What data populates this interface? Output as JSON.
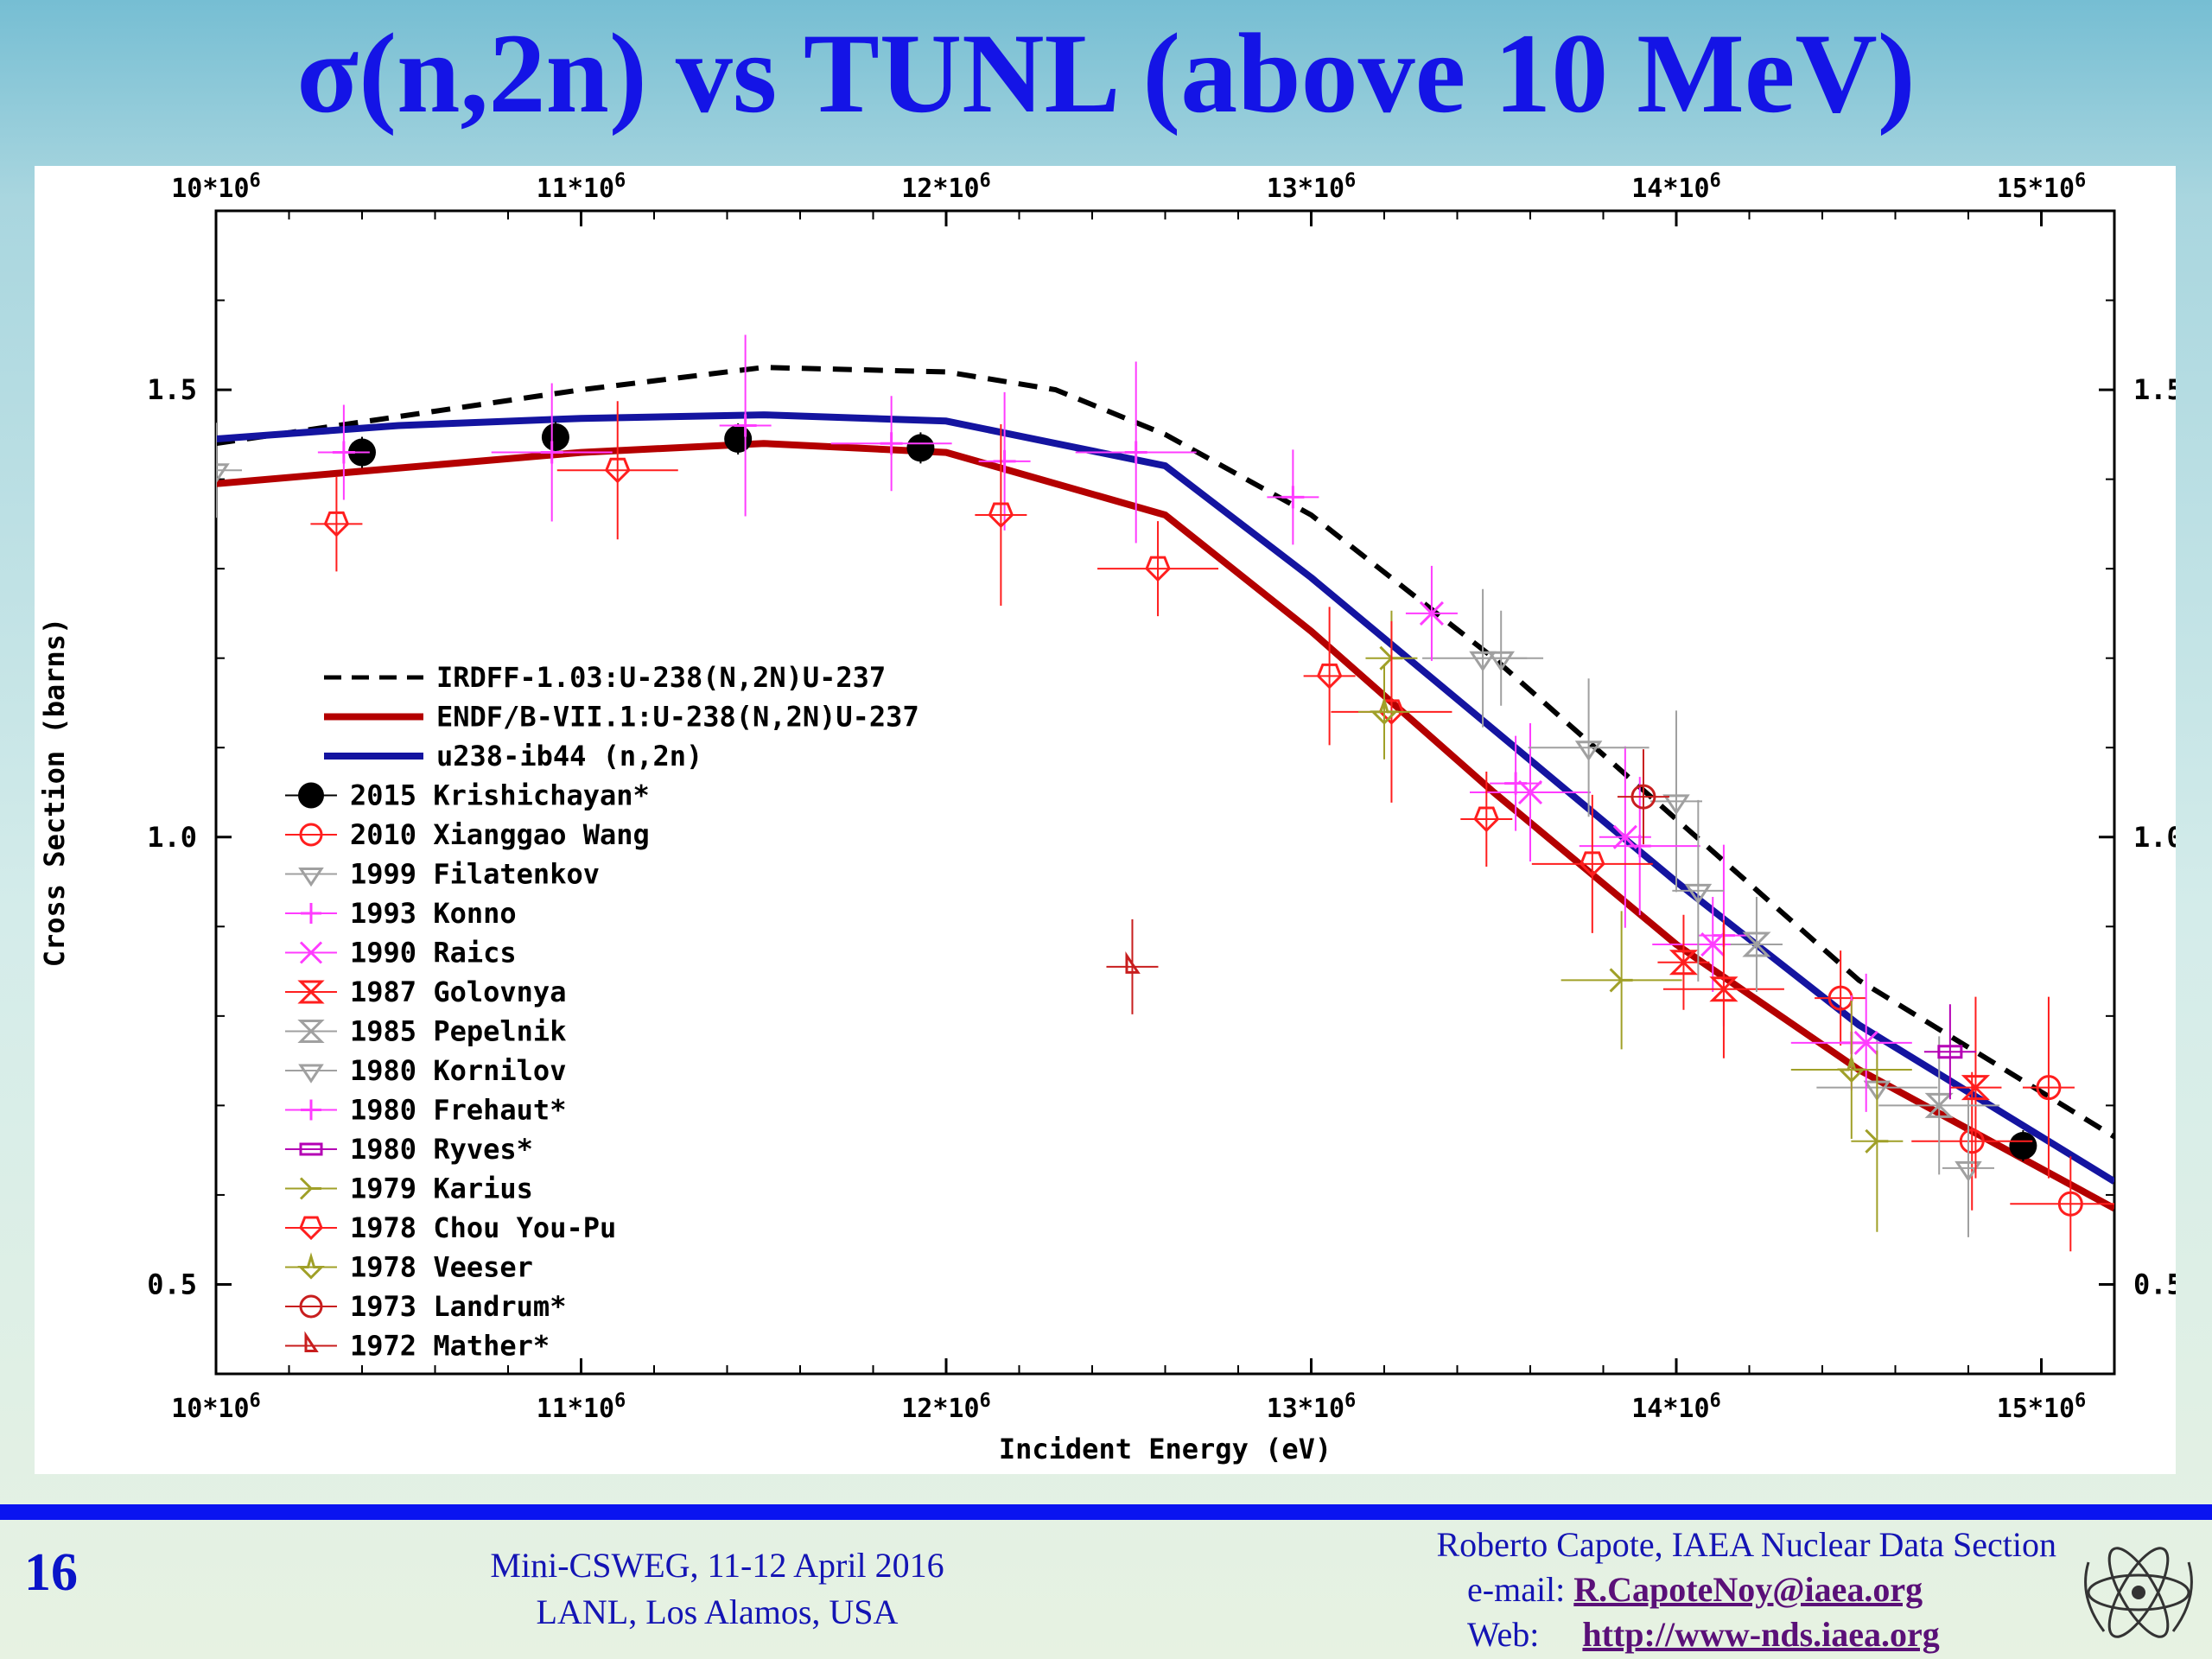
{
  "slide": {
    "title": "σ(n,2n) vs TUNL (above 10 MeV)",
    "page_number": "16",
    "meeting_line1": "Mini-CSWEG, 11-12 April 2016",
    "meeting_line2": "LANL, Los Alamos, USA",
    "author": "Roberto Capote, IAEA Nuclear Data Section",
    "email_label": "e-mail:",
    "email": "R.CapoteNoy@iaea.org",
    "web_label": "Web:",
    "web": "http://www-nds.iaea.org",
    "colors": {
      "title": "#1414e6",
      "footer_bar": "#0a14f0",
      "footer_text": "#1414b4"
    }
  },
  "chart_data": {
    "type": "line",
    "title": "",
    "xlabel": "Incident Energy (eV)",
    "ylabel": "Cross Section (barns)",
    "xlim": [
      10000000,
      15200000
    ],
    "ylim": [
      0.4,
      1.7
    ],
    "grid": false,
    "legend_position": "bottom-left",
    "x_ticks": [
      10000000,
      11000000,
      12000000,
      13000000,
      14000000,
      15000000
    ],
    "x_tick_labels": [
      "10*10⁶",
      "11*10⁶",
      "12*10⁶",
      "13*10⁶",
      "14*10⁶",
      "15*10⁶"
    ],
    "y_ticks": [
      0.5,
      1.0,
      1.5
    ],
    "y_tick_labels": [
      "0.5",
      "1.0",
      "1.5"
    ],
    "series": [
      {
        "name": "IRDFF-1.03:U-238(N,2N)U-237",
        "kind": "line",
        "color": "#000000",
        "dash": true,
        "x": [
          10000000,
          10500000,
          11000000,
          11500000,
          12000000,
          12300000,
          12600000,
          13000000,
          13500000,
          14000000,
          14500000,
          15200000
        ],
        "y": [
          1.44,
          1.47,
          1.5,
          1.525,
          1.52,
          1.5,
          1.45,
          1.36,
          1.2,
          1.02,
          0.84,
          0.665
        ]
      },
      {
        "name": "ENDF/B-VII.1:U-238(N,2N)U-237",
        "kind": "line",
        "color": "#b40000",
        "x": [
          10000000,
          11000000,
          11500000,
          12000000,
          12600000,
          13000000,
          13500000,
          14000000,
          14500000,
          15200000
        ],
        "y": [
          1.395,
          1.43,
          1.44,
          1.43,
          1.36,
          1.23,
          1.05,
          0.88,
          0.74,
          0.585
        ]
      },
      {
        "name": "u238-ib44 (n,2n)",
        "kind": "line",
        "color": "#1414a0",
        "x": [
          10000000,
          10500000,
          11000000,
          11500000,
          12000000,
          12600000,
          13000000,
          13500000,
          14000000,
          14500000,
          15200000
        ],
        "y": [
          1.445,
          1.46,
          1.468,
          1.472,
          1.465,
          1.415,
          1.29,
          1.12,
          0.95,
          0.79,
          0.615
        ]
      },
      {
        "name": "2015 Krishichayan*",
        "kind": "points",
        "color": "#000000",
        "x": [
          10400000,
          10930000,
          11430000,
          11930000,
          14950000
        ],
        "y": [
          1.43,
          1.447,
          1.445,
          1.435,
          0.655
        ]
      },
      {
        "name": "2010 Xianggao Wang",
        "kind": "points",
        "color": "#ff1e1e",
        "x": [
          14450000,
          14810000,
          15020000,
          15080000
        ],
        "y": [
          0.82,
          0.66,
          0.72,
          0.59
        ]
      },
      {
        "name": "1999 Filatenkov",
        "kind": "points",
        "color": "#a0a0a0",
        "x": [
          10000000,
          13470000,
          14000000,
          14550000,
          14800000
        ],
        "y": [
          1.41,
          1.2,
          1.04,
          0.72,
          0.63
        ]
      },
      {
        "name": "1993 Konno",
        "kind": "points",
        "color": "#ff3cff",
        "x": [
          13560000,
          13900000,
          14130000,
          14480000
        ],
        "y": [
          1.06,
          0.99,
          0.89,
          0.77
        ]
      },
      {
        "name": "1990 Raics",
        "kind": "points",
        "color": "#ff3cff",
        "x": [
          13330000,
          13600000,
          13860000,
          14100000,
          14520000
        ],
        "y": [
          1.25,
          1.05,
          1.0,
          0.88,
          0.77
        ]
      },
      {
        "name": "1987 Golovnya",
        "kind": "points",
        "color": "#ff1e1e",
        "x": [
          14020000,
          14130000,
          14820000
        ],
        "y": [
          0.86,
          0.83,
          0.72
        ]
      },
      {
        "name": "1985 Pepelnik",
        "kind": "points",
        "color": "#a0a0a0",
        "x": [
          14220000,
          14720000
        ],
        "y": [
          0.88,
          0.7
        ]
      },
      {
        "name": "1980 Kornilov",
        "kind": "points",
        "color": "#a0a0a0",
        "x": [
          13520000,
          13760000,
          14060000
        ],
        "y": [
          1.2,
          1.1,
          0.94
        ]
      },
      {
        "name": "1980 Frehaut*",
        "kind": "points",
        "color": "#ff3cff",
        "x": [
          10350000,
          10920000,
          11450000,
          11850000,
          12160000,
          12520000,
          12950000
        ],
        "y": [
          1.43,
          1.43,
          1.46,
          1.44,
          1.42,
          1.43,
          1.38
        ]
      },
      {
        "name": "1980 Ryves*",
        "kind": "points",
        "color": "#b400b4",
        "x": [
          14750000
        ],
        "y": [
          0.76
        ]
      },
      {
        "name": "1979 Karius",
        "kind": "points",
        "color": "#a0a028",
        "x": [
          13220000,
          13850000,
          14550000
        ],
        "y": [
          1.2,
          0.84,
          0.66
        ]
      },
      {
        "name": "1978 Chou You-Pu",
        "kind": "points",
        "color": "#ff1e1e",
        "x": [
          10330000,
          11100000,
          12150000,
          12580000,
          13050000,
          13220000,
          13480000,
          13770000
        ],
        "y": [
          1.35,
          1.41,
          1.36,
          1.3,
          1.18,
          1.14,
          1.02,
          0.97
        ]
      },
      {
        "name": "1978 Veeser",
        "kind": "points",
        "color": "#a0a028",
        "x": [
          13200000,
          14480000
        ],
        "y": [
          1.14,
          0.74
        ]
      },
      {
        "name": "1973 Landrum*",
        "kind": "points",
        "color": "#c81e1e",
        "x": [
          13910000
        ],
        "y": [
          1.045
        ]
      },
      {
        "name": "1972 Mather*",
        "kind": "points",
        "color": "#c81e1e",
        "x": [
          12510000
        ],
        "y": [
          0.855
        ]
      }
    ]
  }
}
